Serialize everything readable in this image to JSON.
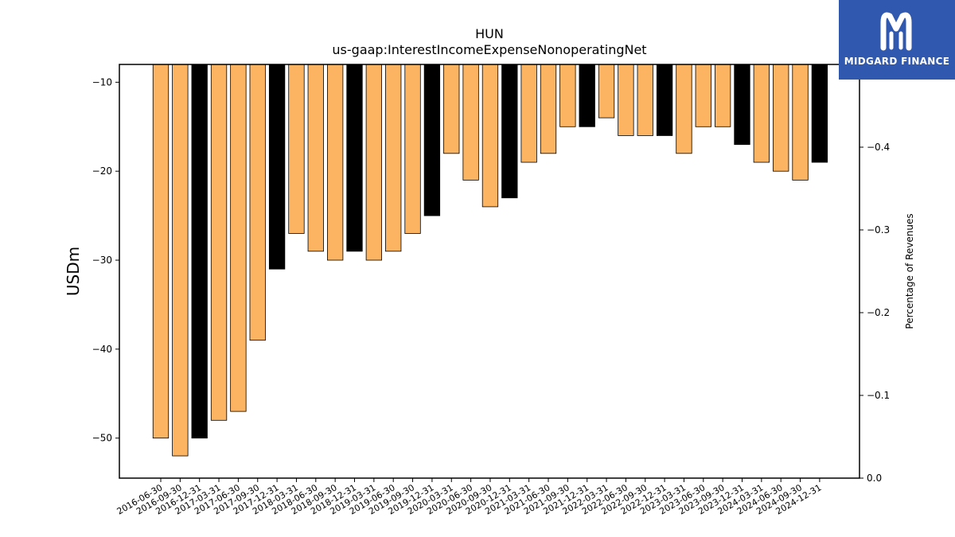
{
  "brand": {
    "name": "MIDGARD FINANCE",
    "logo_icon": "midgard-m-icon",
    "background_color": "#2f58ae"
  },
  "chart_data": {
    "type": "bar",
    "title": "HUN",
    "subtitle": "us-gaap:InterestIncomeExpenseNonoperatingNet",
    "ylabel": "USDm",
    "ylabel_right": "Percentage of Revenues",
    "ylim": [
      -54.5,
      -8
    ],
    "ylim_right": [
      0,
      -0.5
    ],
    "yticks": [
      -10,
      -20,
      -30,
      -40,
      -50
    ],
    "yticks_right": [
      0.0,
      -0.1,
      -0.2,
      -0.3,
      -0.4
    ],
    "grid": false,
    "colors": {
      "quarter": "#fdb462",
      "year_end": "#000000",
      "edge": "#000000"
    },
    "categories": [
      "2016-06-30",
      "2016-09-30",
      "2016-12-31",
      "2017-03-31",
      "2017-06-30",
      "2017-09-30",
      "2017-12-31",
      "2018-03-31",
      "2018-06-30",
      "2018-09-30",
      "2018-12-31",
      "2019-03-31",
      "2019-06-30",
      "2019-09-30",
      "2019-12-31",
      "2020-03-31",
      "2020-06-30",
      "2020-09-30",
      "2020-12-31",
      "2021-03-31",
      "2021-06-30",
      "2021-09-30",
      "2021-12-31",
      "2022-03-31",
      "2022-06-30",
      "2022-09-30",
      "2022-12-31",
      "2023-03-31",
      "2023-06-30",
      "2023-09-30",
      "2023-12-31",
      "2024-03-31",
      "2024-06-30",
      "2024-09-30",
      "2024-12-31"
    ],
    "values": [
      -50,
      -52,
      -50,
      -48,
      -47,
      -39,
      -31,
      -27,
      -29,
      -30,
      -29,
      -30,
      -29,
      -27,
      -25,
      -18,
      -21,
      -24,
      -23,
      -19,
      -18,
      -15,
      -15,
      -14,
      -16,
      -16,
      -16,
      -18,
      -15,
      -15,
      -17,
      -19,
      -20,
      -21,
      -19
    ]
  }
}
